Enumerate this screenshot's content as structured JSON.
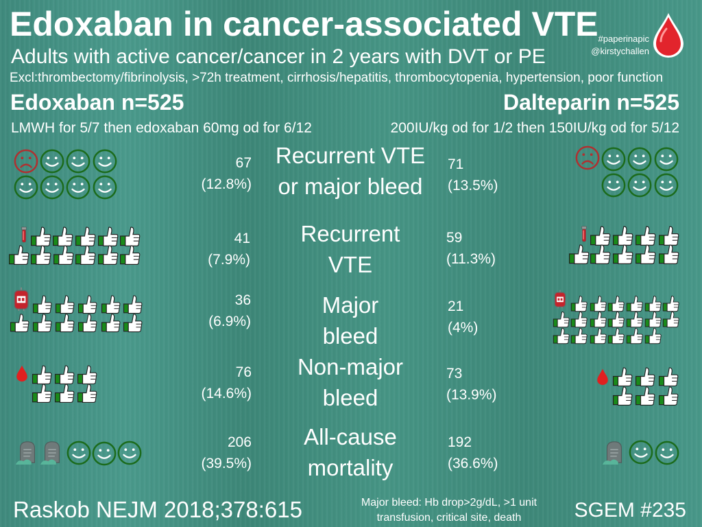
{
  "title": "Edoxaban in cancer-associated VTE",
  "subtitle": "Adults with active cancer/cancer in 2 years with DVT or PE",
  "exclusions": "Excl:thrombectomy/fibrinolysis, >72h treatment, cirrhosis/hepatitis, thrombocytopenia, hypertension, poor function",
  "tags": {
    "hashtag": "#paperinapic",
    "handle": "@kirstychallen"
  },
  "arms": {
    "left": {
      "name": "Edoxaban n=525",
      "dose": "LMWH for 5/7 then edoxaban 60mg od for 6/12"
    },
    "right": {
      "name": "Dalteparin n=525",
      "dose": "200IU/kg od for 1/2 then 150IU/kg od for 5/12"
    }
  },
  "outcomes": [
    {
      "label_line1": "Recurrent VTE",
      "label_line2": "or major bleed",
      "left_count": "67",
      "left_pct": "(12.8%)",
      "right_count": "71",
      "right_pct": "(13.5%)"
    },
    {
      "label_line1": "Recurrent",
      "label_line2": "VTE",
      "left_count": "41",
      "left_pct": "(7.9%)",
      "right_count": "59",
      "right_pct": "(11.3%)"
    },
    {
      "label_line1": "Major",
      "label_line2": "bleed",
      "left_count": "36",
      "left_pct": "(6.9%)",
      "right_count": "21",
      "right_pct": "(4%)"
    },
    {
      "label_line1": "Non-major",
      "label_line2": "bleed",
      "left_count": "76",
      "left_pct": "(14.6%)",
      "right_count": "73",
      "right_pct": "(13.9%)"
    },
    {
      "label_line1": "All-cause",
      "label_line2": "mortality",
      "left_count": "206",
      "left_pct": "(39.5%)",
      "right_count": "192",
      "right_pct": "(36.6%)"
    }
  ],
  "footer": {
    "citation": "Raskob NEJM 2018;378:615",
    "definition_line1": "Major bleed: Hb drop>2g/dL, >1 unit",
    "definition_line2": "transfusion, critical site, death",
    "episode": "SGEM #235"
  },
  "colors": {
    "smiley": "#1b6b1b",
    "sad": "#b03030",
    "thumb_cuff": "#1a8a1a",
    "drop": "#e02020",
    "background": "#438f81"
  }
}
